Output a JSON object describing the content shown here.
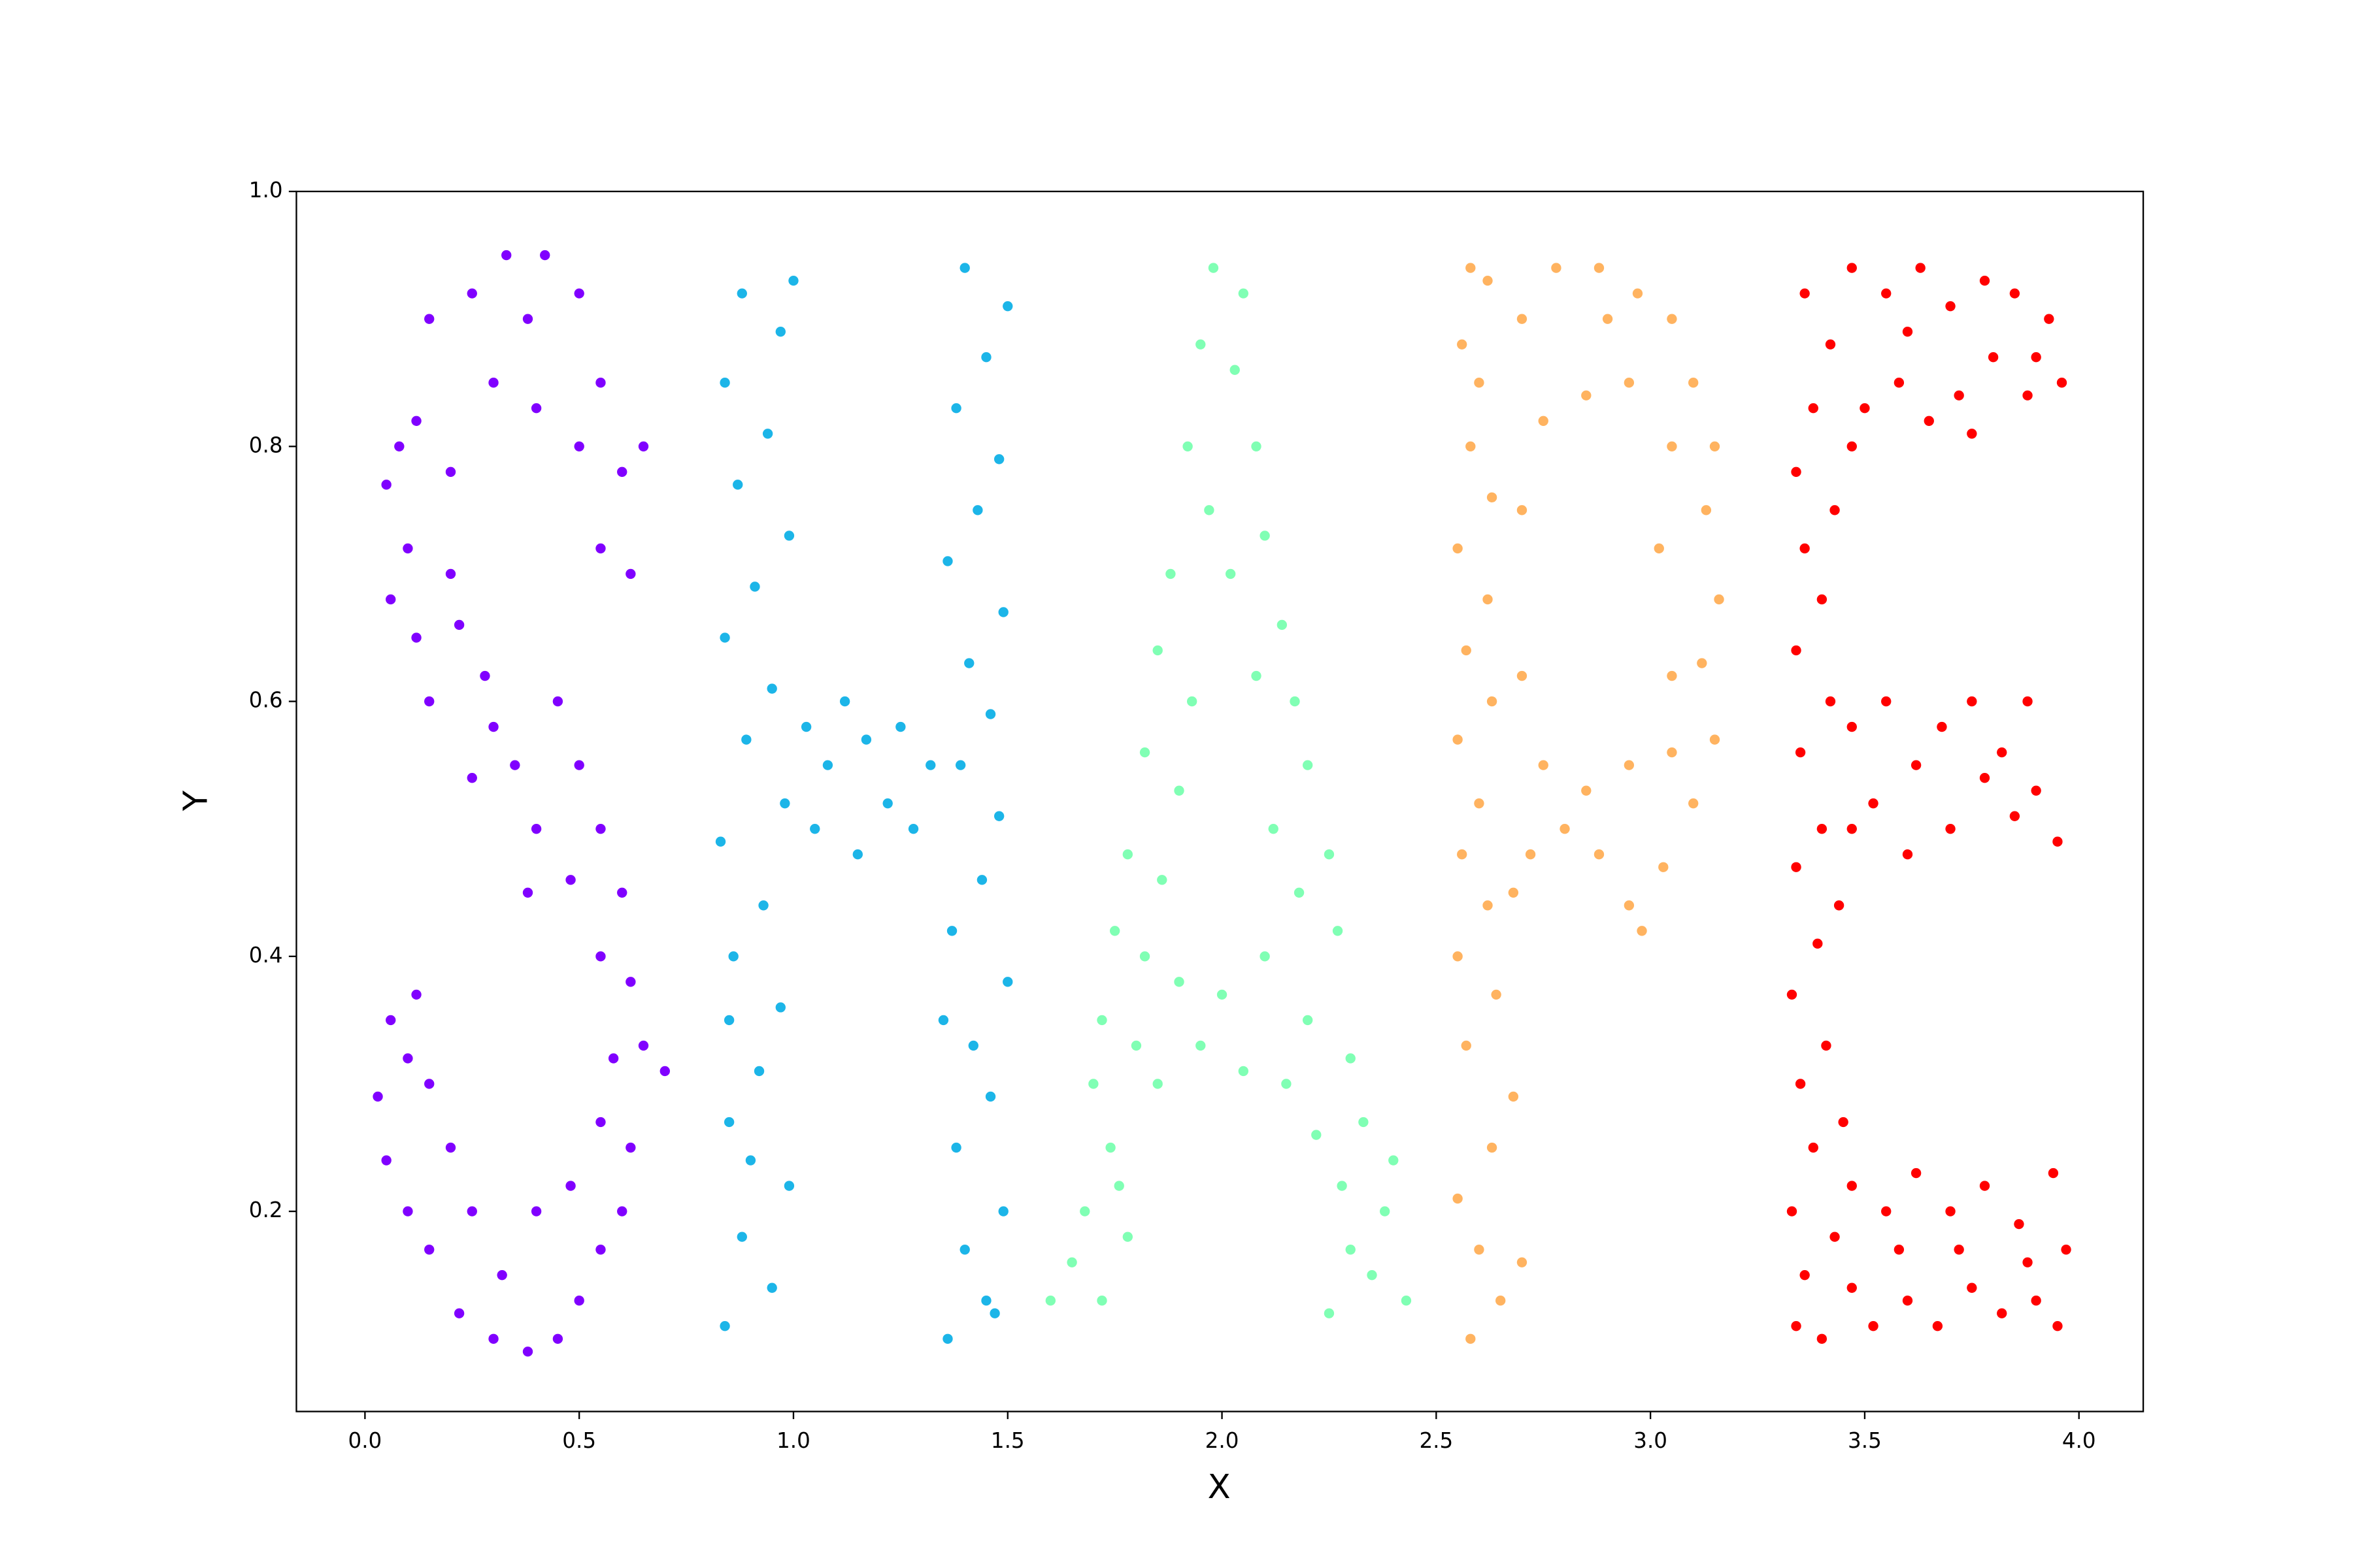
{
  "chart_data": {
    "type": "scatter",
    "xlabel": "X",
    "ylabel": "Y",
    "xlim": [
      -0.16,
      4.15
    ],
    "ylim": [
      0.043,
      1.0
    ],
    "xticks": [
      {
        "value": 0,
        "label": "0.0"
      },
      0.5,
      {
        "value": 1,
        "label": "1.0"
      },
      1.5,
      {
        "value": 2,
        "label": "2.0"
      },
      2.5,
      {
        "value": 3,
        "label": "3.0"
      },
      3.5,
      {
        "value": 4,
        "label": "4.0"
      }
    ],
    "yticks": [
      0.2,
      0.4,
      0.6,
      0.8,
      {
        "value": 1,
        "label": "1.0"
      }
    ],
    "grid": false,
    "series": [
      {
        "color": "#8000ff",
        "x": [
          0.55,
          0.62,
          0.6,
          0.65,
          0.55,
          0.5,
          0.42,
          0.33,
          0.25,
          0.15,
          0.12,
          0.08,
          0.05,
          0.1,
          0.06,
          0.12,
          0.2,
          0.3,
          0.4,
          0.5,
          0.38,
          0.2,
          0.22,
          0.28,
          0.3,
          0.35,
          0.25,
          0.4,
          0.45,
          0.5,
          0.48,
          0.55,
          0.6,
          0.55,
          0.62,
          0.65,
          0.7,
          0.58,
          0.15,
          0.38,
          0.62,
          0.6,
          0.55,
          0.5,
          0.45,
          0.38,
          0.3,
          0.22,
          0.15,
          0.1,
          0.05,
          0.03,
          0.06,
          0.12,
          0.15,
          0.2,
          0.25,
          0.32,
          0.4,
          0.48,
          0.55,
          0.1
        ],
        "y": [
          0.72,
          0.7,
          0.78,
          0.8,
          0.85,
          0.92,
          0.95,
          0.95,
          0.92,
          0.9,
          0.82,
          0.8,
          0.77,
          0.72,
          0.68,
          0.65,
          0.7,
          0.85,
          0.83,
          0.8,
          0.9,
          0.78,
          0.66,
          0.62,
          0.58,
          0.55,
          0.54,
          0.5,
          0.6,
          0.55,
          0.46,
          0.5,
          0.45,
          0.4,
          0.38,
          0.33,
          0.31,
          0.32,
          0.6,
          0.45,
          0.25,
          0.2,
          0.17,
          0.13,
          0.1,
          0.09,
          0.1,
          0.12,
          0.17,
          0.2,
          0.24,
          0.29,
          0.35,
          0.37,
          0.3,
          0.25,
          0.2,
          0.15,
          0.2,
          0.22,
          0.27,
          0.32
        ]
      },
      {
        "color": "#1cb5e8",
        "x": [
          0.84,
          0.95,
          0.88,
          0.99,
          0.85,
          0.92,
          0.97,
          0.86,
          0.93,
          0.83,
          0.98,
          0.89,
          0.95,
          0.84,
          0.91,
          0.99,
          0.87,
          0.94,
          0.84,
          0.97,
          0.88,
          1.0,
          0.9,
          0.85,
          1.03,
          1.08,
          1.12,
          1.17,
          1.22,
          1.28,
          1.32,
          1.05,
          1.15,
          1.25,
          1.36,
          1.45,
          1.4,
          1.49,
          1.38,
          1.46,
          1.42,
          1.5,
          1.37,
          1.44,
          1.48,
          1.39,
          1.46,
          1.41,
          1.49,
          1.36,
          1.43,
          1.48,
          1.38,
          1.45,
          1.5,
          1.4,
          1.47,
          1.35
        ],
        "y": [
          0.11,
          0.14,
          0.18,
          0.22,
          0.27,
          0.31,
          0.36,
          0.4,
          0.44,
          0.49,
          0.52,
          0.57,
          0.61,
          0.65,
          0.69,
          0.73,
          0.77,
          0.81,
          0.85,
          0.89,
          0.92,
          0.93,
          0.24,
          0.35,
          0.58,
          0.55,
          0.6,
          0.57,
          0.52,
          0.5,
          0.55,
          0.5,
          0.48,
          0.58,
          0.1,
          0.13,
          0.17,
          0.2,
          0.25,
          0.29,
          0.33,
          0.38,
          0.42,
          0.46,
          0.51,
          0.55,
          0.59,
          0.63,
          0.67,
          0.71,
          0.75,
          0.79,
          0.83,
          0.87,
          0.91,
          0.94,
          0.12,
          0.35
        ]
      },
      {
        "color": "#80ffb4",
        "x": [
          1.98,
          2.05,
          1.95,
          2.03,
          2.08,
          1.92,
          1.97,
          2.1,
          1.88,
          2.02,
          2.14,
          1.85,
          1.93,
          2.17,
          2.08,
          1.82,
          1.9,
          2.2,
          2.12,
          1.78,
          1.86,
          2.25,
          2.18,
          1.75,
          1.82,
          2.27,
          1.9,
          2.0,
          2.1,
          2.2,
          1.8,
          1.95,
          2.05,
          2.15,
          1.85,
          1.72,
          1.7,
          2.3,
          1.74,
          1.68,
          1.78,
          1.65,
          1.72,
          1.6,
          2.33,
          2.28,
          2.38,
          2.35,
          2.25,
          2.43,
          2.3,
          2.4,
          1.76,
          2.22
        ],
        "y": [
          0.94,
          0.92,
          0.88,
          0.86,
          0.8,
          0.8,
          0.75,
          0.73,
          0.7,
          0.7,
          0.66,
          0.64,
          0.6,
          0.6,
          0.62,
          0.56,
          0.53,
          0.55,
          0.5,
          0.48,
          0.46,
          0.48,
          0.45,
          0.42,
          0.4,
          0.42,
          0.38,
          0.37,
          0.4,
          0.35,
          0.33,
          0.33,
          0.31,
          0.3,
          0.3,
          0.35,
          0.3,
          0.32,
          0.25,
          0.2,
          0.18,
          0.16,
          0.13,
          0.13,
          0.27,
          0.22,
          0.2,
          0.15,
          0.12,
          0.13,
          0.17,
          0.24,
          0.22,
          0.26
        ]
      },
      {
        "color": "#ffb360",
        "x": [
          2.58,
          2.65,
          2.6,
          2.7,
          2.55,
          2.63,
          2.68,
          2.57,
          2.64,
          2.55,
          2.62,
          2.56,
          2.6,
          2.55,
          2.63,
          2.57,
          2.62,
          2.55,
          2.63,
          2.58,
          2.6,
          2.56,
          2.62,
          2.58,
          2.7,
          2.78,
          2.88,
          2.97,
          3.05,
          3.1,
          3.15,
          3.13,
          3.16,
          3.12,
          3.15,
          3.1,
          3.03,
          2.95,
          2.98,
          2.88,
          2.8,
          2.72,
          2.75,
          2.85,
          2.95,
          3.05,
          3.05,
          3.02,
          3.05,
          2.95,
          2.85,
          2.75,
          2.7,
          2.9,
          2.68,
          2.7
        ],
        "y": [
          0.1,
          0.13,
          0.17,
          0.16,
          0.21,
          0.25,
          0.29,
          0.33,
          0.37,
          0.4,
          0.44,
          0.48,
          0.52,
          0.57,
          0.6,
          0.64,
          0.68,
          0.72,
          0.76,
          0.8,
          0.85,
          0.88,
          0.93,
          0.94,
          0.9,
          0.94,
          0.94,
          0.92,
          0.9,
          0.85,
          0.8,
          0.75,
          0.68,
          0.63,
          0.57,
          0.52,
          0.47,
          0.44,
          0.42,
          0.48,
          0.5,
          0.48,
          0.55,
          0.53,
          0.55,
          0.56,
          0.62,
          0.72,
          0.8,
          0.85,
          0.84,
          0.82,
          0.75,
          0.9,
          0.45,
          0.62
        ]
      },
      {
        "color": "#ff0000",
        "x": [
          3.34,
          3.4,
          3.36,
          3.43,
          3.33,
          3.38,
          3.45,
          3.35,
          3.41,
          3.33,
          3.39,
          3.44,
          3.34,
          3.4,
          3.35,
          3.42,
          3.34,
          3.4,
          3.36,
          3.43,
          3.34,
          3.38,
          3.36,
          3.42,
          3.47,
          3.55,
          3.63,
          3.7,
          3.78,
          3.85,
          3.93,
          3.96,
          3.88,
          3.8,
          3.72,
          3.65,
          3.58,
          3.5,
          3.47,
          3.6,
          3.75,
          3.9,
          3.47,
          3.55,
          3.62,
          3.68,
          3.75,
          3.82,
          3.9,
          3.95,
          3.85,
          3.78,
          3.7,
          3.6,
          3.52,
          3.47,
          3.88,
          3.47,
          3.55,
          3.62,
          3.7,
          3.78,
          3.86,
          3.94,
          3.97,
          3.9,
          3.82,
          3.75,
          3.67,
          3.6,
          3.52,
          3.47,
          3.58,
          3.72,
          3.88,
          3.95
        ],
        "y": [
          0.11,
          0.1,
          0.15,
          0.18,
          0.2,
          0.25,
          0.27,
          0.3,
          0.33,
          0.37,
          0.41,
          0.44,
          0.47,
          0.5,
          0.56,
          0.6,
          0.64,
          0.68,
          0.72,
          0.75,
          0.78,
          0.83,
          0.92,
          0.88,
          0.94,
          0.92,
          0.94,
          0.91,
          0.93,
          0.92,
          0.9,
          0.85,
          0.84,
          0.87,
          0.84,
          0.82,
          0.85,
          0.83,
          0.8,
          0.89,
          0.81,
          0.87,
          0.58,
          0.6,
          0.55,
          0.58,
          0.6,
          0.56,
          0.53,
          0.49,
          0.51,
          0.54,
          0.5,
          0.48,
          0.52,
          0.5,
          0.6,
          0.22,
          0.2,
          0.23,
          0.2,
          0.22,
          0.19,
          0.23,
          0.17,
          0.13,
          0.12,
          0.14,
          0.11,
          0.13,
          0.11,
          0.14,
          0.17,
          0.17,
          0.16,
          0.11
        ]
      }
    ]
  }
}
